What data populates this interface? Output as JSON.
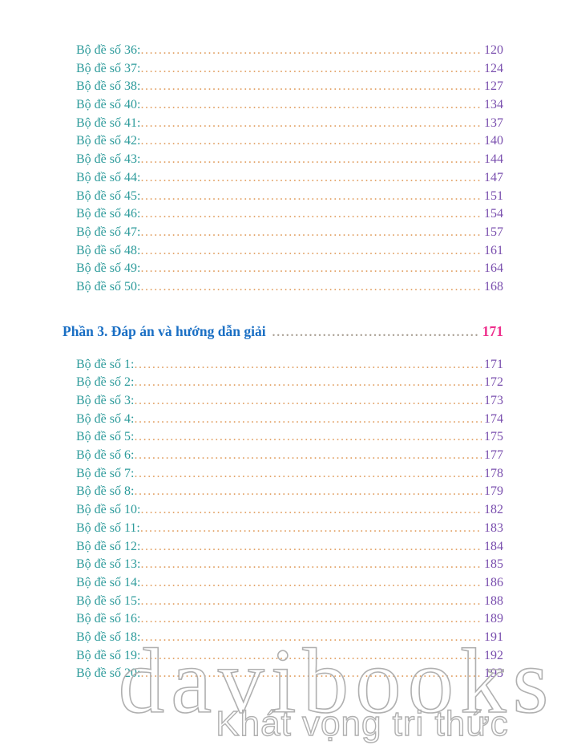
{
  "colors": {
    "entry_text": "#2d9b9b",
    "entry_page": "#7a4fae",
    "entry_dots": "#e2a266",
    "heading_text": "#1a6fc4",
    "heading_page": "#ee2e8c",
    "heading_dots": "#a89e92",
    "watermark_stroke": "#b0b0b0",
    "page_bg": "#ffffff"
  },
  "toc": {
    "sections": [
      {
        "name": "part2-entries",
        "entries": [
          {
            "label": "Bộ đề số 36:",
            "page": "120"
          },
          {
            "label": "Bộ đề số 37:",
            "page": "124"
          },
          {
            "label": "Bộ đề số 38:",
            "page": "127"
          },
          {
            "label": "Bộ đề số 40:",
            "page": "134"
          },
          {
            "label": "Bộ đề số 41:",
            "page": "137"
          },
          {
            "label": "Bộ đề số 42:",
            "page": "140"
          },
          {
            "label": "Bộ đề số 43:",
            "page": "144"
          },
          {
            "label": "Bộ đề số 44:",
            "page": "147"
          },
          {
            "label": "Bộ đề số 45:",
            "page": "151"
          },
          {
            "label": "Bộ đề số 46:",
            "page": "154"
          },
          {
            "label": "Bộ đề số 47:",
            "page": "157"
          },
          {
            "label": "Bộ đề số 48:",
            "page": "161"
          },
          {
            "label": "Bộ đề số 49:",
            "page": "164"
          },
          {
            "label": "Bộ đề số 50:",
            "page": "168"
          }
        ]
      },
      {
        "name": "part3-entries",
        "entries": [
          {
            "label": "Bộ đề số 1:",
            "page": "171"
          },
          {
            "label": "Bộ đề số 2:",
            "page": "172"
          },
          {
            "label": "Bộ đề số 3:",
            "page": "173"
          },
          {
            "label": "Bộ đề số 4:",
            "page": "174"
          },
          {
            "label": "Bộ đề số 5:",
            "page": "175"
          },
          {
            "label": "Bộ đề số 6:",
            "page": "177"
          },
          {
            "label": "Bộ đề số 7:",
            "page": "178"
          },
          {
            "label": "Bộ đề số 8:",
            "page": "179"
          },
          {
            "label": "Bộ đề số 10:",
            "page": "182"
          },
          {
            "label": "Bộ đề số 11:",
            "page": "183"
          },
          {
            "label": "Bộ đề số 12:",
            "page": "184"
          },
          {
            "label": "Bộ đề số 13:",
            "page": "185"
          },
          {
            "label": "Bộ đề số 14:",
            "page": "186"
          },
          {
            "label": "Bộ đề số 15:",
            "page": "188"
          },
          {
            "label": "Bộ đề số 16:",
            "page": "189"
          },
          {
            "label": "Bộ đề số 18:",
            "page": "191"
          },
          {
            "label": "Bộ đề số 19:",
            "page": "192"
          },
          {
            "label": "Bộ đề số 20:",
            "page": "193"
          }
        ]
      }
    ],
    "heading": {
      "label": "Phần 3. Đáp án và hướng dẫn giải",
      "page": "171"
    }
  },
  "watermark": {
    "brand": "davibooks",
    "tagline": "Khát vọng tri thức"
  }
}
